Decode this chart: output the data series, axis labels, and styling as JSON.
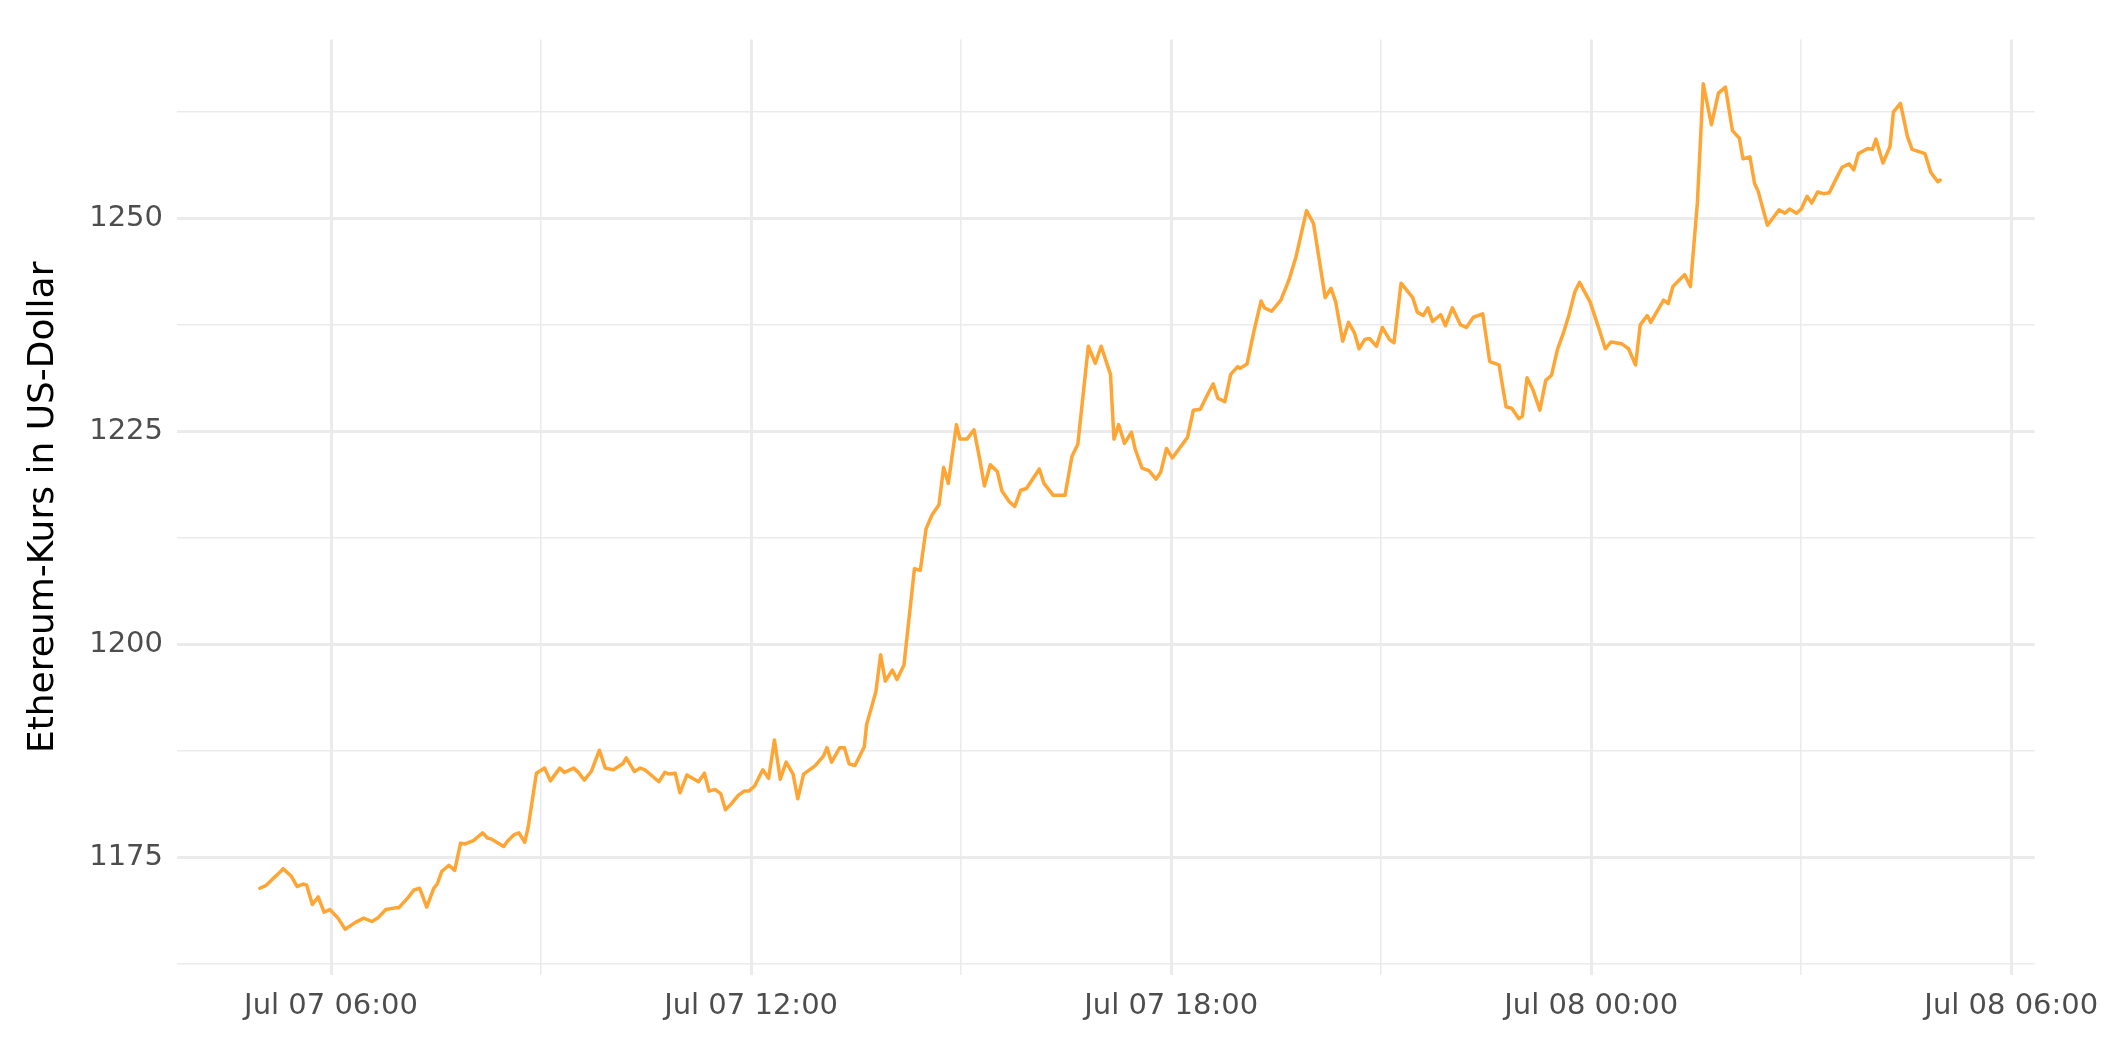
{
  "chart_data": {
    "type": "line",
    "ylabel": "Ethereum-Kurs in US-Dollar",
    "grid": true,
    "legend": false,
    "marker": "none",
    "line_style": "solid",
    "xlim": [
      "--07-07T03:48",
      "--07-08T06:20"
    ],
    "ylim": [
      1161.2,
      1271
    ],
    "xticks": [
      {
        "value": "--07-07T06:00",
        "label": "Jul 07 06:00"
      },
      {
        "value": "--07-07T09:00",
        "label": null
      },
      {
        "value": "--07-07T12:00",
        "label": "Jul 07 12:00"
      },
      {
        "value": "--07-07T15:00",
        "label": null
      },
      {
        "value": "--07-07T18:00",
        "label": "Jul 07 18:00"
      },
      {
        "value": "--07-07T21:00",
        "label": null
      },
      {
        "value": "--07-08T00:00",
        "label": "Jul 08 00:00"
      },
      {
        "value": "--07-08T03:00",
        "label": null
      },
      {
        "value": "--07-08T06:00",
        "label": "Jul 08 06:00"
      }
    ],
    "yticks": [
      {
        "value": 1162.5,
        "label": null
      },
      1175,
      {
        "value": 1187.5,
        "label": null
      },
      1200,
      {
        "value": 1212.5,
        "label": null
      },
      1225,
      {
        "value": 1237.5,
        "label": null
      },
      1250,
      {
        "value": 1262.5,
        "label": null
      }
    ],
    "x": [
      "--07-07T04:59",
      "--07-07T05:04",
      "--07-07T05:10",
      "--07-07T05:14",
      "--07-07T05:19",
      "--07-07T05:26",
      "--07-07T05:31",
      "--07-07T05:36",
      "--07-07T05:39",
      "--07-07T05:44",
      "--07-07T05:49",
      "--07-07T05:54",
      "--07-07T05:59",
      "--07-07T06:06",
      "--07-07T06:12",
      "--07-07T06:21",
      "--07-07T06:28",
      "--07-07T06:35",
      "--07-07T06:40",
      "--07-07T06:47",
      "--07-07T06:55",
      "--07-07T06:58",
      "--07-07T07:06",
      "--07-07T07:11",
      "--07-07T07:16",
      "--07-07T07:22",
      "--07-07T07:28",
      "--07-07T07:31",
      "--07-07T07:35",
      "--07-07T07:41",
      "--07-07T07:46",
      "--07-07T07:51",
      "--07-07T07:55",
      "--07-07T08:02",
      "--07-07T08:10",
      "--07-07T08:14",
      "--07-07T08:17",
      "--07-07T08:28",
      "--07-07T08:31",
      "--07-07T08:37",
      "--07-07T08:41",
      "--07-07T08:46",
      "--07-07T08:49",
      "--07-07T08:56",
      "--07-07T09:03",
      "--07-07T09:08",
      "--07-07T09:16",
      "--07-07T09:20",
      "--07-07T09:28",
      "--07-07T09:32",
      "--07-07T09:37",
      "--07-07T09:43",
      "--07-07T09:50",
      "--07-07T09:55",
      "--07-07T10:02",
      "--07-07T10:10",
      "--07-07T10:13",
      "--07-07T10:20",
      "--07-07T10:25",
      "--07-07T10:29",
      "--07-07T10:35",
      "--07-07T10:41",
      "--07-07T10:46",
      "--07-07T10:50",
      "--07-07T10:55",
      "--07-07T10:59",
      "--07-07T11:05",
      "--07-07T11:15",
      "--07-07T11:20",
      "--07-07T11:24",
      "--07-07T11:29",
      "--07-07T11:34",
      "--07-07T11:38",
      "--07-07T11:43",
      "--07-07T11:49",
      "--07-07T11:54",
      "--07-07T11:58",
      "--07-07T12:03",
      "--07-07T12:10",
      "--07-07T12:15",
      "--07-07T12:20",
      "--07-07T12:25",
      "--07-07T12:30",
      "--07-07T12:36",
      "--07-07T12:40",
      "--07-07T12:45",
      "--07-07T12:55",
      "--07-07T13:02",
      "--07-07T13:05",
      "--07-07T13:09",
      "--07-07T13:16",
      "--07-07T13:20",
      "--07-07T13:24",
      "--07-07T13:29",
      "--07-07T13:37",
      "--07-07T13:39",
      "--07-07T13:47",
      "--07-07T13:51",
      "--07-07T13:55",
      "--07-07T14:01",
      "--07-07T14:05",
      "--07-07T14:11",
      "--07-07T14:20",
      "--07-07T14:25",
      "--07-07T14:30",
      "--07-07T14:35",
      "--07-07T14:41",
      "--07-07T14:45",
      "--07-07T14:49",
      "--07-07T14:56",
      "--07-07T14:59",
      "--07-07T15:05",
      "--07-07T15:11",
      "--07-07T15:16",
      "--07-07T15:20",
      "--07-07T15:25",
      "--07-07T15:31",
      "--07-07T15:35",
      "--07-07T15:41",
      "--07-07T15:46",
      "--07-07T15:51",
      "--07-07T15:56",
      "--07-07T16:07",
      "--07-07T16:11",
      "--07-07T16:19",
      "--07-07T16:29",
      "--07-07T16:35",
      "--07-07T16:40",
      "--07-07T16:49",
      "--07-07T16:55",
      "--07-07T17:00",
      "--07-07T17:08",
      "--07-07T17:11",
      "--07-07T17:15",
      "--07-07T17:20",
      "--07-07T17:26",
      "--07-07T17:29",
      "--07-07T17:35",
      "--07-07T17:41",
      "--07-07T17:47",
      "--07-07T17:51",
      "--07-07T17:56",
      "--07-07T18:01",
      "--07-07T18:07",
      "--07-07T18:14",
      "--07-07T18:19",
      "--07-07T18:25",
      "--07-07T18:30",
      "--07-07T18:36",
      "--07-07T18:40",
      "--07-07T18:46",
      "--07-07T18:51",
      "--07-07T18:57",
      "--07-07T18:59",
      "--07-07T19:05",
      "--07-07T19:11",
      "--07-07T19:17",
      "--07-07T19:20",
      "--07-07T19:26",
      "--07-07T19:34",
      "--07-07T19:41",
      "--07-07T19:47",
      "--07-07T19:56",
      "--07-07T20:02",
      "--07-07T20:12",
      "--07-07T20:17",
      "--07-07T20:21",
      "--07-07T20:27",
      "--07-07T20:32",
      "--07-07T20:37",
      "--07-07T20:41",
      "--07-07T20:46",
      "--07-07T20:50",
      "--07-07T20:56",
      "--07-07T21:01",
      "--07-07T21:07",
      "--07-07T21:11",
      "--07-07T21:17",
      "--07-07T21:27",
      "--07-07T21:31",
      "--07-07T21:36",
      "--07-07T21:40",
      "--07-07T21:44",
      "--07-07T21:51",
      "--07-07T21:55",
      "--07-07T22:01",
      "--07-07T22:08",
      "--07-07T22:13",
      "--07-07T22:19",
      "--07-07T22:27",
      "--07-07T22:33",
      "--07-07T22:41",
      "--07-07T22:47",
      "--07-07T22:52",
      "--07-07T22:58",
      "--07-07T23:01",
      "--07-07T23:05",
      "--07-07T23:10",
      "--07-07T23:16",
      "--07-07T23:21",
      "--07-07T23:26",
      "--07-07T23:31",
      "--07-07T23:36",
      "--07-07T23:41",
      "--07-07T23:46",
      "--07-07T23:50",
      "--07-07T23:59",
      "--07-08T00:08",
      "--07-08T00:12",
      "--07-08T00:17",
      "--07-08T00:26",
      "--07-08T00:32",
      "--07-08T00:38",
      "--07-08T00:42",
      "--07-08T00:48",
      "--07-08T00:51",
      "--07-08T00:56",
      "--07-08T01:02",
      "--07-08T01:06",
      "--07-08T01:10",
      "--07-08T01:20",
      "--07-08T01:25",
      "--07-08T01:31",
      "--07-08T01:36",
      "--07-08T01:43",
      "--07-08T01:49",
      "--07-08T01:55",
      "--07-08T02:01",
      "--07-08T02:07",
      "--07-08T02:10",
      "--07-08T02:16",
      "--07-08T02:20",
      "--07-08T02:23",
      "--07-08T02:31",
      "--07-08T02:41",
      "--07-08T02:46",
      "--07-08T02:50",
      "--07-08T02:56",
      "--07-08T03:00",
      "--07-08T03:05",
      "--07-08T03:09",
      "--07-08T03:14",
      "--07-08T03:19",
      "--07-08T03:24",
      "--07-08T03:29",
      "--07-08T03:35",
      "--07-08T03:41",
      "--07-08T03:45",
      "--07-08T03:49",
      "--07-08T03:57",
      "--07-08T04:01",
      "--07-08T04:04",
      "--07-08T04:10",
      "--07-08T04:16",
      "--07-08T04:19",
      "--07-08T04:25",
      "--07-08T04:31",
      "--07-08T04:35",
      "--07-08T04:46",
      "--07-08T04:51",
      "--07-08T04:57",
      "--07-08T04:59"
    ],
    "series": [
      {
        "color": "#ffa533",
        "values": [
          1171.4,
          1171.7,
          1172.5,
          1173,
          1173.7,
          1172.8,
          1171.6,
          1171.9,
          1171.8,
          1169.5,
          1170.4,
          1168.6,
          1168.9,
          1167.9,
          1166.6,
          1167.4,
          1167.9,
          1167.5,
          1167.9,
          1168.9,
          1169.1,
          1169.1,
          1170.3,
          1171.2,
          1171.4,
          1169.2,
          1171.4,
          1171.9,
          1173.4,
          1174.1,
          1173.5,
          1176.7,
          1176.6,
          1177,
          1177.9,
          1177.3,
          1177.2,
          1176.3,
          1176.9,
          1177.7,
          1177.9,
          1176.8,
          1178.6,
          1184.9,
          1185.5,
          1184,
          1185.5,
          1185,
          1185.5,
          1185,
          1184.1,
          1185.1,
          1187.6,
          1185.5,
          1185.3,
          1186,
          1186.7,
          1185.1,
          1185.5,
          1185.3,
          1184.6,
          1183.9,
          1185,
          1184.8,
          1184.9,
          1182.6,
          1184.7,
          1183.9,
          1184.9,
          1182.8,
          1183,
          1182.5,
          1180.6,
          1181.3,
          1182.3,
          1182.8,
          1182.8,
          1183.4,
          1185.3,
          1184.3,
          1188.8,
          1184.2,
          1186.2,
          1184.8,
          1181.9,
          1184.8,
          1185.8,
          1186.9,
          1187.9,
          1186.2,
          1187.9,
          1187.9,
          1186,
          1185.8,
          1188,
          1190.6,
          1194.5,
          1198.8,
          1195.7,
          1197,
          1195.9,
          1197.6,
          1208.9,
          1208.7,
          1213.6,
          1215.2,
          1216.4,
          1220.8,
          1218.9,
          1225.8,
          1224.1,
          1224.1,
          1225.2,
          1221.7,
          1218.6,
          1221.1,
          1220.3,
          1218,
          1216.8,
          1216.2,
          1218.1,
          1218.3,
          1220.6,
          1218.9,
          1217.5,
          1217.5,
          1222.1,
          1223.5,
          1235,
          1233,
          1235,
          1231.7,
          1224.1,
          1225.8,
          1223.6,
          1224.9,
          1223,
          1220.7,
          1220.4,
          1219.4,
          1220.2,
          1223,
          1221.9,
          1223,
          1224.3,
          1227.5,
          1227.6,
          1229,
          1230.6,
          1228.9,
          1228.5,
          1231.7,
          1232.6,
          1232.4,
          1232.9,
          1236.8,
          1240.3,
          1239.5,
          1239.1,
          1240.4,
          1242.8,
          1245.5,
          1250.9,
          1249.4,
          1240.7,
          1241.8,
          1240.2,
          1235.6,
          1237.8,
          1236.6,
          1234.7,
          1235.8,
          1235.9,
          1235,
          1237.2,
          1235.8,
          1235.4,
          1242.4,
          1240.7,
          1239,
          1238.6,
          1239.5,
          1237.9,
          1238.7,
          1237.4,
          1239.5,
          1237.5,
          1237.2,
          1238.4,
          1238.8,
          1233.2,
          1232.8,
          1227.9,
          1227.7,
          1226.5,
          1226.8,
          1231.3,
          1229.9,
          1227.5,
          1231,
          1231.6,
          1234.6,
          1236.5,
          1238.7,
          1241.4,
          1242.5,
          1240.2,
          1236.5,
          1234.7,
          1235.5,
          1235.3,
          1234.7,
          1232.8,
          1237.5,
          1238.6,
          1237.8,
          1239,
          1240.4,
          1240,
          1242,
          1243.4,
          1242,
          1251.9,
          1265.8,
          1261,
          1264.7,
          1265.4,
          1260.3,
          1259.4,
          1257,
          1257.2,
          1254.1,
          1253.2,
          1249.2,
          1251,
          1250.6,
          1251.1,
          1250.6,
          1251.1,
          1252.6,
          1251.8,
          1253.1,
          1252.9,
          1253,
          1254.4,
          1256,
          1256.4,
          1255.7,
          1257.6,
          1258.2,
          1258.1,
          1259.3,
          1256.5,
          1258.4,
          1262.5,
          1263.5,
          1259.6,
          1258.1,
          1257.6,
          1255.4,
          1254.3,
          1254.5
        ]
      }
    ]
  }
}
